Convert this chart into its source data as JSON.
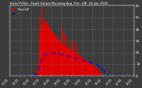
{
  "title": "Solar PV/Inv  Panel Output/Running Avg  Pwr  kW  14-Jan-2020",
  "legend_label1": "Panel kW",
  "legend_label2": "---",
  "bg_color": "#3c3c3c",
  "plot_bg_color": "#3c3c3c",
  "bar_color": "#dd0000",
  "avg_line_color": "#0000dd",
  "grid_color": "#aaaaaa",
  "text_color": "#ffffff",
  "n_points": 144,
  "ylim": [
    0,
    6000
  ],
  "ytick_values": [
    0,
    1000,
    2000,
    3000,
    4000,
    5000,
    6000
  ],
  "ytick_labels": [
    "0",
    "1k",
    "2k",
    "3k",
    "4k",
    "5k",
    "6k"
  ],
  "bar_values": [
    0,
    0,
    0,
    0,
    0,
    0,
    0,
    0,
    0,
    0,
    0,
    0,
    0,
    0,
    0,
    0,
    0,
    0,
    0,
    0,
    0,
    0,
    0,
    0,
    0,
    0,
    0,
    10,
    30,
    80,
    200,
    400,
    800,
    1400,
    2000,
    2800,
    3600,
    4200,
    5800,
    4500,
    4800,
    4600,
    4700,
    4500,
    4300,
    4200,
    4000,
    3900,
    3800,
    3700,
    3600,
    3600,
    3500,
    3400,
    3300,
    3200,
    3100,
    3000,
    2900,
    2800,
    2750,
    2700,
    2650,
    2600,
    2550,
    2500,
    2450,
    2400,
    2350,
    2300,
    2250,
    2200,
    2150,
    2100,
    2050,
    2000,
    1950,
    1900,
    1850,
    1800,
    1750,
    1700,
    1650,
    1600,
    1550,
    1500,
    1450,
    1400,
    1350,
    1300,
    1250,
    1200,
    1150,
    1100,
    1050,
    1000,
    950,
    900,
    850,
    800,
    750,
    650,
    550,
    450,
    350,
    250,
    150,
    50,
    0,
    0,
    0,
    0,
    0,
    0,
    0,
    0,
    0,
    0,
    0,
    0,
    0,
    0,
    0,
    0,
    0,
    0,
    0,
    0,
    0,
    0,
    0,
    0,
    0,
    0,
    0,
    0,
    0,
    0,
    0,
    0,
    0,
    0,
    0,
    0
  ],
  "spike_data": [
    [
      34,
      5200
    ],
    [
      35,
      4800
    ],
    [
      38,
      5900
    ],
    [
      39,
      4400
    ],
    [
      60,
      4200
    ],
    [
      61,
      3800
    ],
    [
      63,
      3600
    ],
    [
      65,
      3400
    ],
    [
      70,
      3200
    ],
    [
      72,
      3000
    ],
    [
      75,
      2800
    ],
    [
      78,
      2600
    ]
  ],
  "avg_values": [
    0,
    0,
    0,
    0,
    0,
    0,
    0,
    0,
    0,
    0,
    0,
    0,
    0,
    0,
    0,
    0,
    0,
    0,
    0,
    0,
    0,
    0,
    0,
    0,
    0,
    0,
    0,
    5,
    15,
    40,
    100,
    180,
    320,
    520,
    720,
    950,
    1200,
    1420,
    1650,
    1700,
    1760,
    1820,
    1850,
    1880,
    1900,
    1920,
    1930,
    1940,
    1940,
    1940,
    1940,
    1940,
    1940,
    1930,
    1920,
    1910,
    1900,
    1880,
    1860,
    1840,
    1820,
    1800,
    1780,
    1760,
    1740,
    1720,
    1700,
    1680,
    1660,
    1640,
    1620,
    1600,
    1580,
    1560,
    1540,
    1520,
    1500,
    1480,
    1460,
    1440,
    1420,
    1400,
    1380,
    1360,
    1340,
    1320,
    1300,
    1280,
    1260,
    1240,
    1220,
    1200,
    1180,
    1160,
    1140,
    1120,
    1100,
    1070,
    1040,
    1010,
    980,
    940,
    900,
    850,
    790,
    720,
    640,
    550,
    450,
    360,
    270,
    190,
    130,
    80,
    40,
    15,
    5,
    0,
    0,
    0,
    0,
    0,
    0,
    0,
    0,
    0,
    0,
    0,
    0,
    0,
    0,
    0,
    0,
    0,
    0,
    0,
    0,
    0,
    0,
    0,
    0,
    0,
    0,
    0
  ],
  "xtick_positions": [
    0,
    12,
    24,
    36,
    48,
    60,
    72,
    84,
    96,
    108,
    120,
    132,
    144
  ],
  "xtick_labels": [
    "00:00",
    "02:00",
    "04:00",
    "06:00",
    "08:00",
    "10:00",
    "12:00",
    "14:00",
    "16:00",
    "18:00",
    "20:00",
    "22:00",
    "24:00"
  ],
  "vgrid_positions": [
    0,
    12,
    24,
    36,
    48,
    60,
    72,
    84,
    96,
    108,
    120,
    132,
    144
  ]
}
